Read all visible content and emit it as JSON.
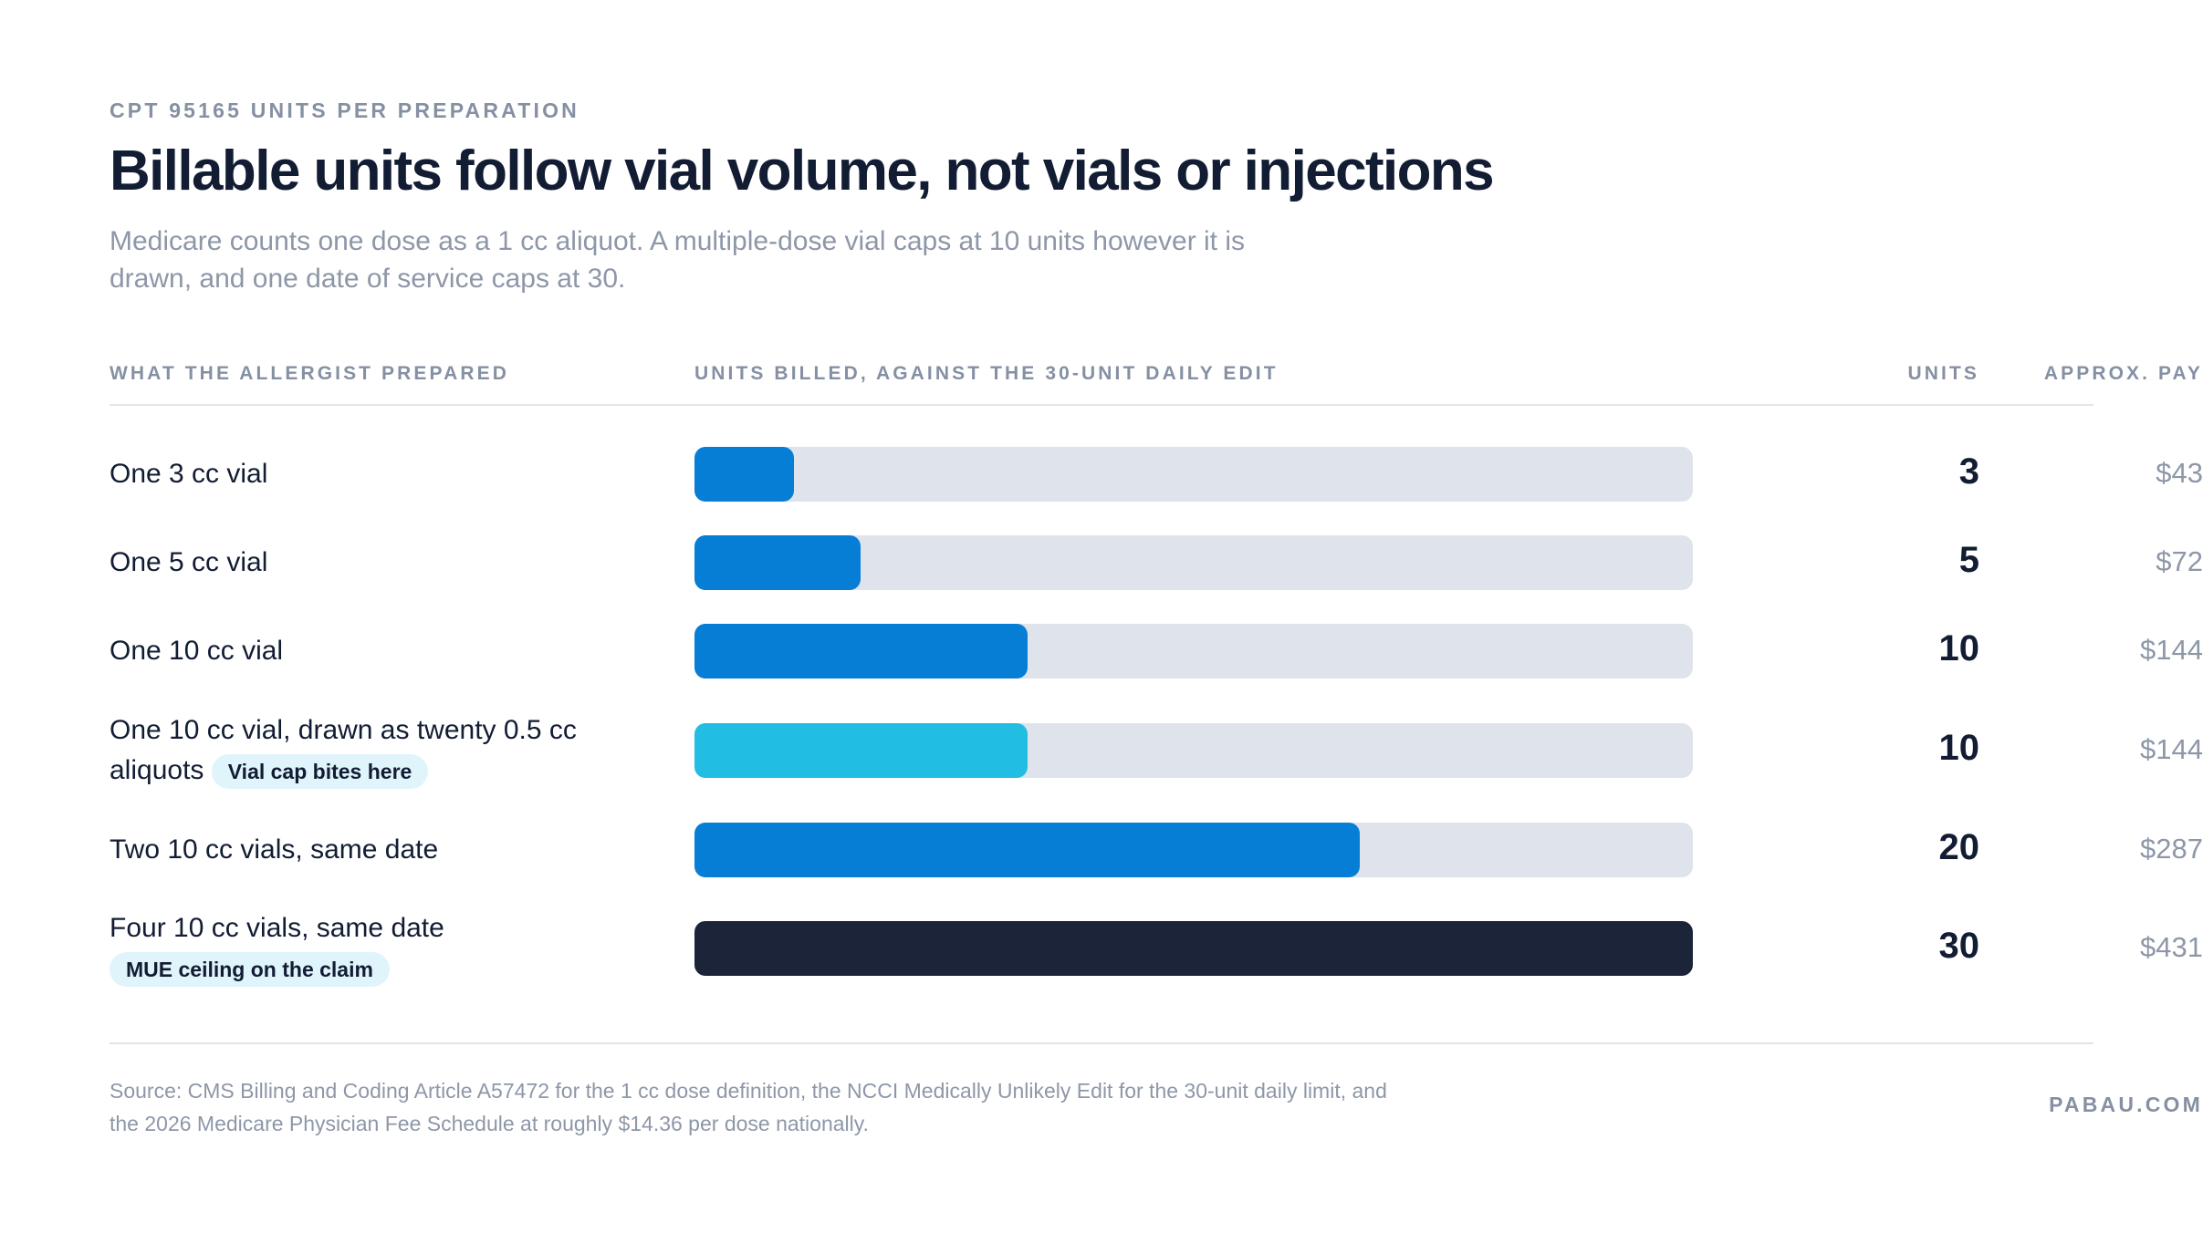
{
  "header": {
    "kicker": "CPT 95165 UNITS PER PREPARATION",
    "title": "Billable units follow vial volume, not vials or injections",
    "subtitle": "Medicare counts one dose as a 1 cc aliquot. A multiple-dose vial caps at 10 units however it is drawn, and one date of service caps at 30."
  },
  "columns": {
    "prepared": "WHAT THE ALLERGIST PREPARED",
    "billed": "UNITS BILLED, AGAINST THE 30-UNIT DAILY EDIT",
    "units": "UNITS",
    "pay": "APPROX. PAY"
  },
  "colors": {
    "bar_primary": "#067ed6",
    "bar_highlight": "#22bde2",
    "bar_ceiling": "#1b2438",
    "track": "#dfe3ec",
    "badge_bg": "#e0f4fb"
  },
  "chart_data": {
    "type": "bar",
    "orientation": "horizontal",
    "xlim": [
      0,
      30
    ],
    "categories": [
      "One 3 cc vial",
      "One 5 cc vial",
      "One 10 cc vial",
      "One 10 cc vial, drawn as twenty 0.5 cc aliquots",
      "Two 10 cc vials, same date",
      "Four 10 cc vials, same date"
    ],
    "values": [
      3,
      5,
      10,
      10,
      20,
      30
    ],
    "unit_labels": [
      "3",
      "5",
      "10",
      "10",
      "20",
      "30"
    ],
    "pay_labels": [
      "$43",
      "$72",
      "$144",
      "$144",
      "$287",
      "$431"
    ],
    "badges": [
      "",
      "",
      "",
      "Vial cap bites here",
      "",
      "MUE ceiling on the claim"
    ],
    "bar_styles": [
      "primary",
      "primary",
      "primary",
      "highlight",
      "primary",
      "ceiling"
    ]
  },
  "footer": {
    "source": "Source: CMS Billing and Coding Article A57472 for the 1 cc dose definition, the NCCI Medically Unlikely Edit for the 30-unit daily limit, and the 2026 Medicare Physician Fee Schedule at roughly $14.36 per dose nationally.",
    "brand": "PABAU.COM"
  }
}
